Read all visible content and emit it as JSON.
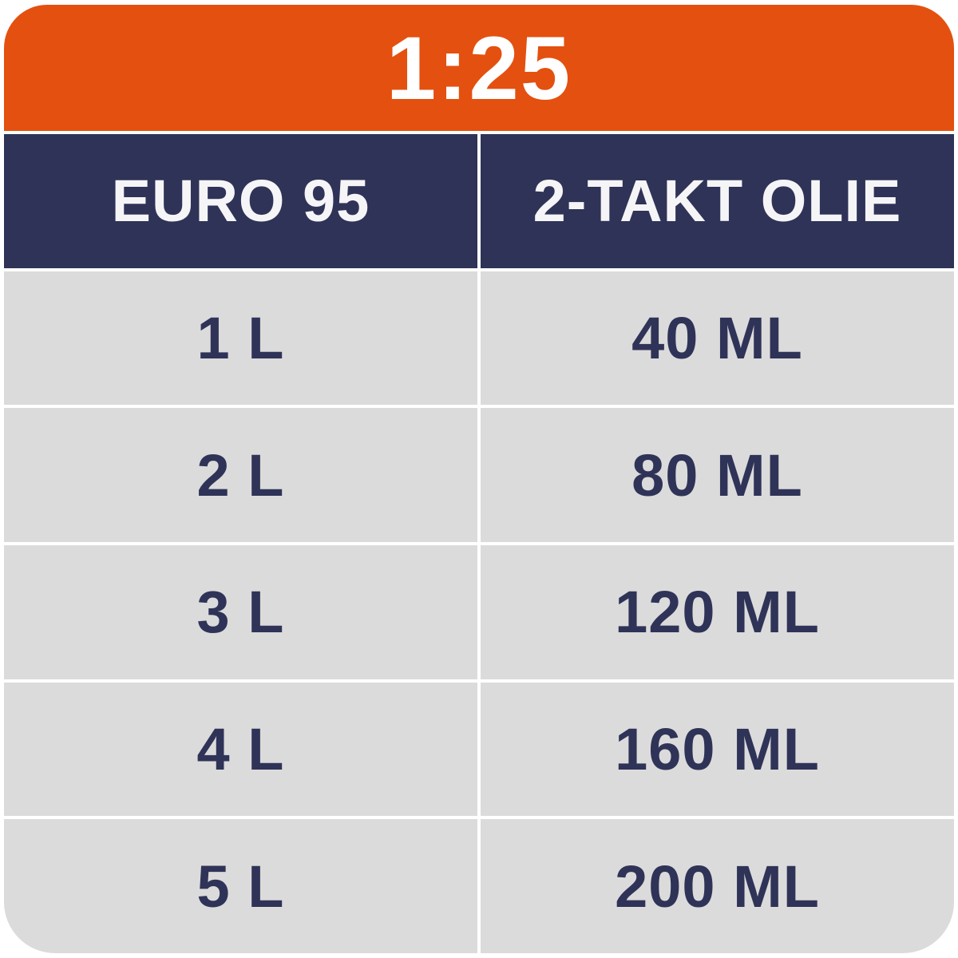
{
  "ratio_banner": {
    "label": "1:25"
  },
  "table": {
    "columns": [
      {
        "label": "EURO 95"
      },
      {
        "label": "2-TAKT OLIE"
      }
    ],
    "rows": [
      {
        "fuel": "1 L",
        "oil": "40 ML"
      },
      {
        "fuel": "2 L",
        "oil": "80 ML"
      },
      {
        "fuel": "3 L",
        "oil": "120 ML"
      },
      {
        "fuel": "4 L",
        "oil": "160 ML"
      },
      {
        "fuel": "5 L",
        "oil": "200 ML"
      }
    ]
  },
  "colors": {
    "accent_orange": "#E4500F",
    "header_navy": "#2F3357",
    "row_gray": "#DBDBDB",
    "text_light": "#F5F5F7"
  },
  "chart_data": {
    "type": "table",
    "title": "1:25",
    "columns": [
      "EURO 95",
      "2-TAKT OLIE"
    ],
    "rows": [
      [
        "1 L",
        "40 ML"
      ],
      [
        "2 L",
        "80 ML"
      ],
      [
        "3 L",
        "120 ML"
      ],
      [
        "4 L",
        "160 ML"
      ],
      [
        "5 L",
        "200 ML"
      ]
    ],
    "notes": "Fuel-to-oil mixing ratio 1:25; left column petrol litres, right column two-stroke oil millilitres"
  }
}
